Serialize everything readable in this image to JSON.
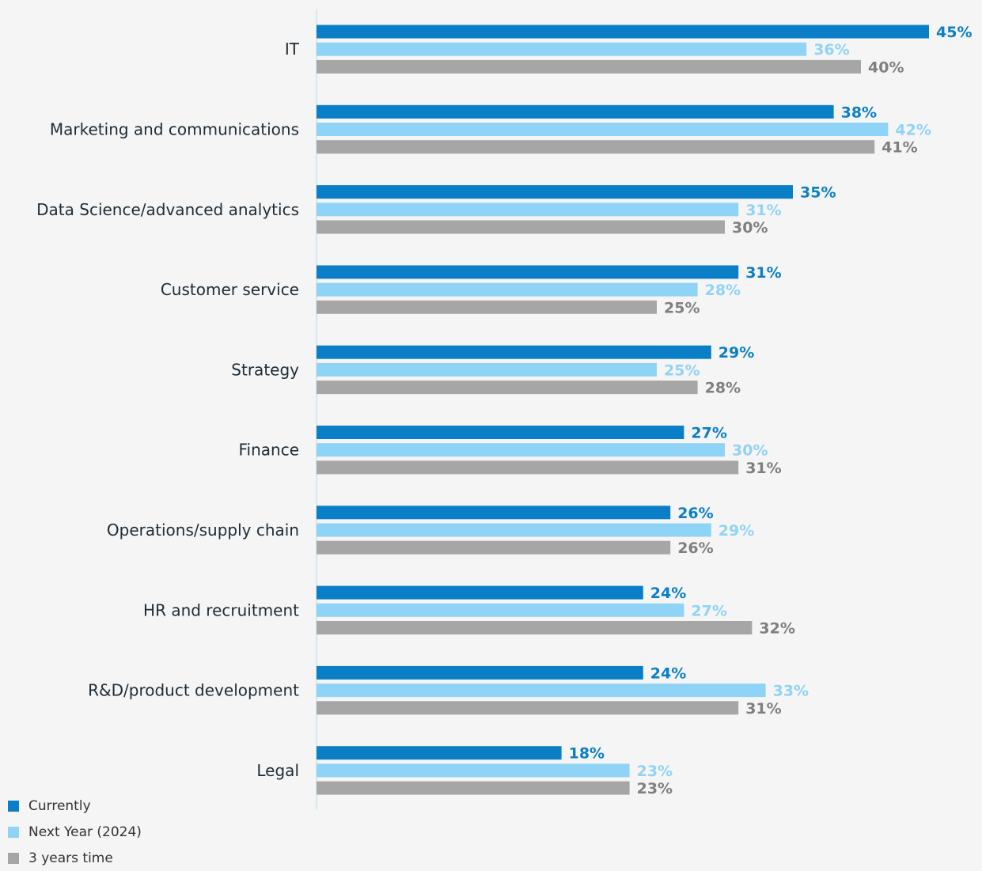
{
  "chart_data": {
    "type": "bar",
    "orientation": "horizontal",
    "categories": [
      "IT",
      "Marketing and communications",
      "Data Science/advanced analytics",
      "Customer service",
      "Strategy",
      "Finance",
      "Operations/supply chain",
      "HR and recruitment",
      "R&D/product development",
      "Legal"
    ],
    "series": [
      {
        "name": "Currently",
        "color": "#0a7fc7",
        "values": [
          45,
          38,
          35,
          31,
          29,
          27,
          26,
          24,
          24,
          18
        ]
      },
      {
        "name": "Next Year (2024)",
        "color": "#8fd3f7",
        "values": [
          36,
          42,
          31,
          28,
          25,
          30,
          29,
          27,
          33,
          23
        ]
      },
      {
        "name": "3 years time",
        "color": "#a6a6a6",
        "values": [
          40,
          41,
          30,
          25,
          28,
          31,
          26,
          32,
          31,
          23
        ]
      }
    ],
    "value_suffix": "%",
    "xlim": [
      0,
      45
    ],
    "grid": false,
    "legend_position": "bottom-left"
  }
}
